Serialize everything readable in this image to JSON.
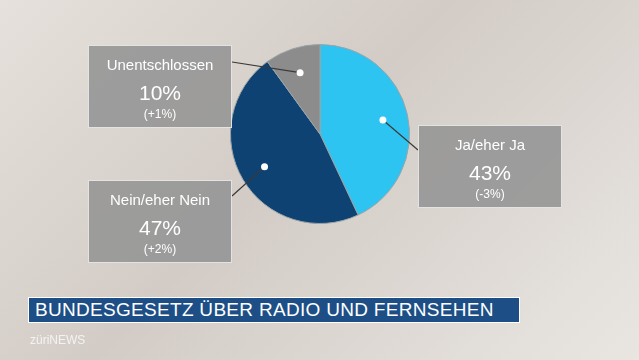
{
  "chart_data": {
    "type": "pie",
    "title": "BUNDESGESETZ ÜBER RADIO UND FERNSEHEN",
    "categories": [
      "Ja/eher Ja",
      "Nein/eher Nein",
      "Unentschlossen"
    ],
    "values": [
      43,
      47,
      10
    ],
    "value_labels": [
      "43%",
      "47%",
      "10%"
    ],
    "change_labels": [
      "(-3%)",
      "(+2%)",
      "(+1%)"
    ],
    "colors": [
      "#2ec4f2",
      "#0d4272",
      "#8c8c8c"
    ],
    "data_labels": true,
    "source": "züriNEWS"
  }
}
